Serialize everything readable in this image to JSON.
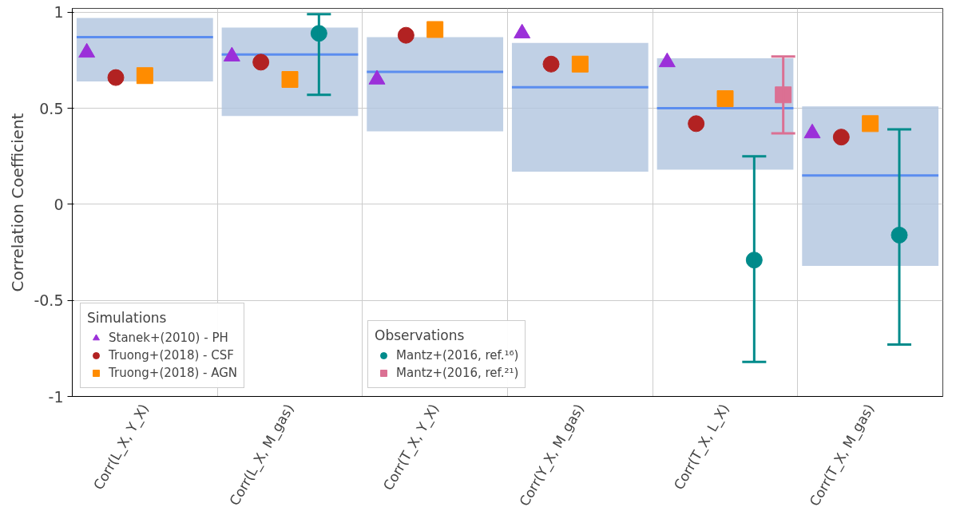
{
  "chart_data": {
    "type": "scatter",
    "ylabel": "Correlation Coefficient",
    "categories": [
      "Corr(L_X, Y_X)",
      "Corr(L_X, M_gas)",
      "Corr(T_X, Y_X)",
      "Corr(Y_X, M_gas)",
      "Corr(T_X, L_X)",
      "Corr(T_X, M_gas)"
    ],
    "ylim": [
      -1,
      1.02
    ],
    "yticks": [
      1,
      0.5,
      0,
      -0.5,
      -1
    ],
    "grid": true,
    "legend_title": [
      "Simulations",
      "Observations"
    ],
    "legend": [
      "bottom left",
      "bottom"
    ],
    "series": [
      {
        "type": "box",
        "color": "#b0c4de",
        "boxes": [
          {
            "low": 0.64,
            "q1": 0.64,
            "median": 0.87,
            "q3": 0.97,
            "high": 0.97
          },
          {
            "low": 0.46,
            "q1": 0.46,
            "median": 0.78,
            "q3": 0.92,
            "high": 0.92
          },
          {
            "low": 0.38,
            "q1": 0.38,
            "median": 0.69,
            "q3": 0.87,
            "high": 0.87
          },
          {
            "low": 0.17,
            "q1": 0.17,
            "median": 0.61,
            "q3": 0.84,
            "high": 0.84
          },
          {
            "low": 0.18,
            "q1": 0.18,
            "median": 0.5,
            "q3": 0.76,
            "high": 0.76
          },
          {
            "low": -0.32,
            "q1": -0.32,
            "median": 0.15,
            "q3": 0.51,
            "high": 0.51
          }
        ]
      },
      {
        "name": "Stanek+(2010) - PH",
        "marker": "triangle",
        "color": "#9b30d9",
        "values": [
          0.79,
          0.77,
          0.65,
          0.89,
          0.74,
          0.37
        ]
      },
      {
        "name": "Truong+(2018) - CSF",
        "marker": "circle",
        "color": "#b22222",
        "values": [
          0.66,
          0.74,
          0.88,
          0.73,
          0.42,
          0.35
        ]
      },
      {
        "name": "Truong+(2018) - AGN",
        "marker": "square",
        "color": "#ff8c00",
        "values": [
          0.67,
          0.65,
          0.91,
          0.73,
          0.55,
          0.42
        ]
      },
      {
        "name": "Mantz+(2016, ref.¹⁶)",
        "marker": "circle",
        "color": "#008b8b",
        "values": [
          null,
          0.89,
          null,
          null,
          -0.29,
          -0.16
        ],
        "errors": [
          null,
          [
            0.57,
            0.99
          ],
          null,
          null,
          [
            -0.82,
            0.25
          ],
          [
            -0.73,
            0.39
          ]
        ]
      },
      {
        "name": "Mantz+(2016, ref.²¹)",
        "marker": "square",
        "color": "#db7093",
        "values": [
          null,
          null,
          null,
          null,
          0.57,
          null
        ],
        "errors": [
          null,
          null,
          null,
          null,
          [
            0.37,
            0.77
          ],
          null
        ]
      }
    ]
  }
}
